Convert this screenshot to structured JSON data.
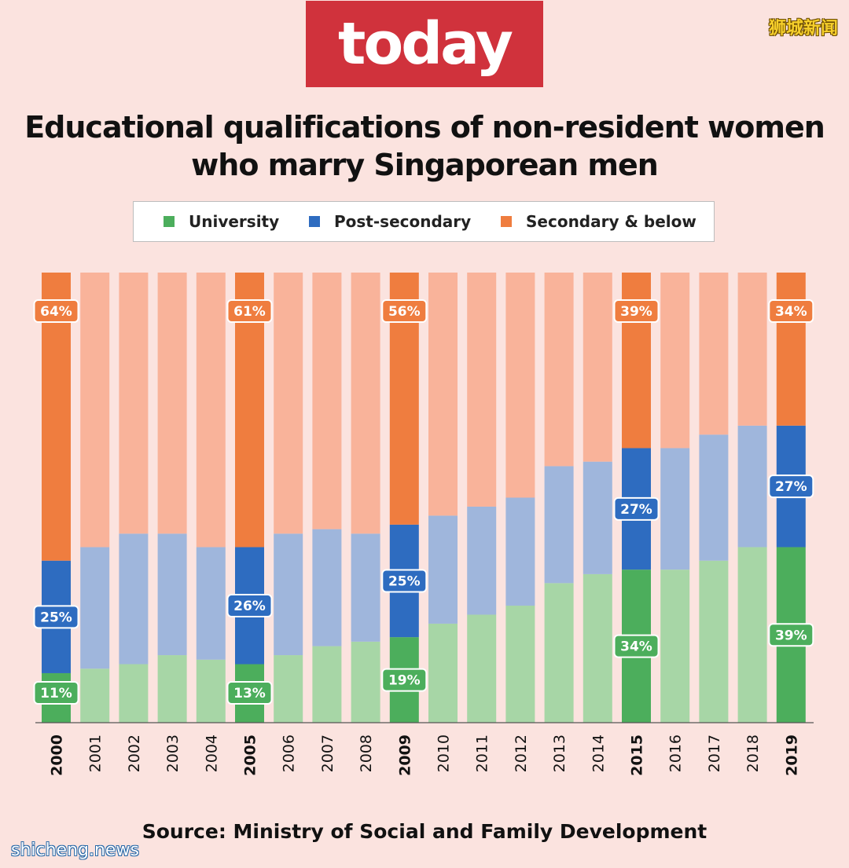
{
  "logo": {
    "text": "today"
  },
  "watermarks": {
    "top_right": "狮城新闻",
    "bottom_left": "shicheng.news"
  },
  "colors": {
    "university": "#4cae5c",
    "university_light": "#a7d6a6",
    "post_secondary": "#2e6cc0",
    "post_secondary_light": "#9fb6dc",
    "secondary": "#ef7d3f",
    "secondary_light": "#f9b39a",
    "background": "#fbe3df",
    "logo_bg": "#d0323c"
  },
  "legend": [
    {
      "label": "University",
      "color": "#4cae5c"
    },
    {
      "label": "Post-secondary",
      "color": "#2e6cc0"
    },
    {
      "label": "Secondary & below",
      "color": "#ef7d3f"
    }
  ],
  "source": "Source: Ministry of Social and Family Development",
  "chart_data": {
    "type": "bar",
    "stacked": true,
    "orientation": "vertical",
    "title": "Educational qualifications of non-resident women who marry Singaporean men",
    "categories": [
      "2000",
      "2001",
      "2002",
      "2003",
      "2004",
      "2005",
      "2006",
      "2007",
      "2008",
      "2009",
      "2010",
      "2011",
      "2012",
      "2013",
      "2014",
      "2015",
      "2016",
      "2017",
      "2018",
      "2019"
    ],
    "highlighted": [
      "2000",
      "2005",
      "2009",
      "2015",
      "2019"
    ],
    "series": [
      {
        "name": "University",
        "values": [
          11,
          12,
          13,
          15,
          14,
          13,
          15,
          17,
          18,
          19,
          22,
          24,
          26,
          31,
          33,
          34,
          34,
          36,
          39,
          39
        ]
      },
      {
        "name": "Post-secondary",
        "values": [
          25,
          27,
          29,
          27,
          25,
          26,
          27,
          26,
          24,
          25,
          24,
          24,
          24,
          26,
          25,
          27,
          27,
          28,
          27,
          27
        ]
      },
      {
        "name": "Secondary & below",
        "values": [
          64,
          61,
          58,
          58,
          61,
          61,
          58,
          57,
          58,
          56,
          54,
          52,
          50,
          43,
          42,
          39,
          39,
          36,
          34,
          34
        ]
      }
    ],
    "data_labels": {
      "2000": [
        "11%",
        "25%",
        "64%"
      ],
      "2005": [
        "13%",
        "26%",
        "61%"
      ],
      "2009": [
        "19%",
        "25%",
        "56%"
      ],
      "2015": [
        "34%",
        "27%",
        "39%"
      ],
      "2019": [
        "39%",
        "27%",
        "34%"
      ]
    },
    "ylim": [
      0,
      100
    ],
    "xlabel": "",
    "ylabel": "",
    "grid": false,
    "legend_position": "top"
  }
}
